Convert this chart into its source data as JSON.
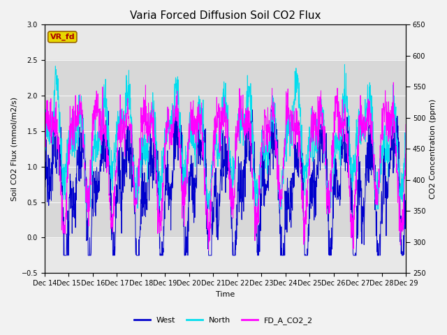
{
  "title": "Varia Forced Diffusion Soil CO2 Flux",
  "xlabel": "Time",
  "ylabel_left": "Soil CO2 Flux (mmol/m2/s)",
  "ylabel_right": "CO2 Concentration (ppm)",
  "ylim_left": [
    -0.5,
    3.0
  ],
  "ylim_right": [
    250,
    650
  ],
  "shade_ylim": [
    0.0,
    2.5
  ],
  "xtick_labels": [
    "Dec 14",
    "Dec 15",
    "Dec 16",
    "Dec 17",
    "Dec 18",
    "Dec 19",
    "Dec 20",
    "Dec 21",
    "Dec 22",
    "Dec 23",
    "Dec 24",
    "Dec 25",
    "Dec 26",
    "Dec 27",
    "Dec 28",
    "Dec 29",
    "Dec 29"
  ],
  "legend_labels": [
    "West",
    "North",
    "FD_A_CO2_2"
  ],
  "line_colors": [
    "#0000cc",
    "#00ddee",
    "#ff00ff"
  ],
  "vr_fd_label": "VR_fd",
  "vr_fd_facecolor": "#e8d800",
  "vr_fd_edgecolor": "#996600",
  "background_color": "#f2f2f2",
  "plot_bg_color": "#e8e8e8",
  "shade_color": "#d8d8d8",
  "grid_color": "#ffffff",
  "seed": 42,
  "n_points": 1600,
  "title_fontsize": 11,
  "axis_fontsize": 8,
  "tick_fontsize": 7,
  "legend_fontsize": 8
}
